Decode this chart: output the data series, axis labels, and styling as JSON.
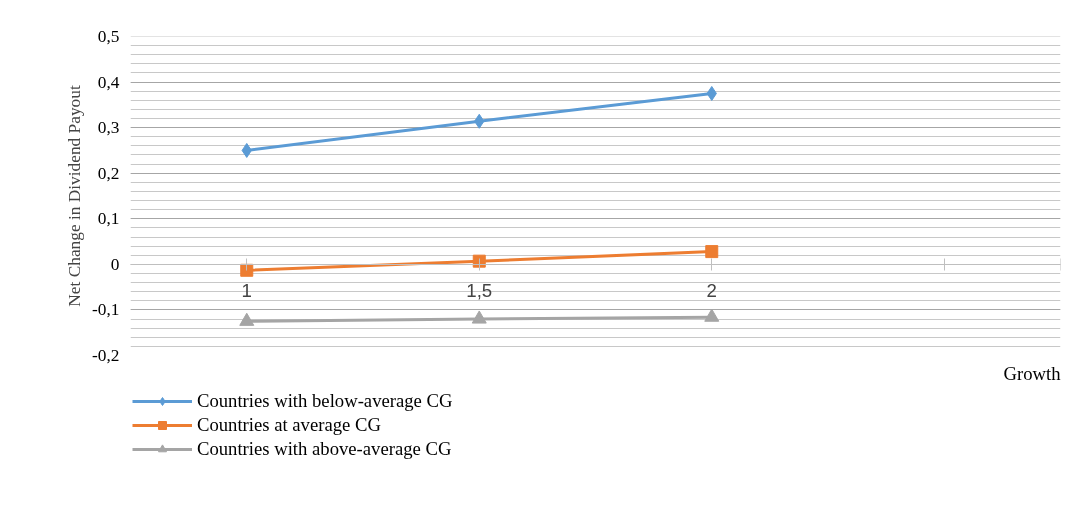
{
  "chart_data": {
    "type": "line",
    "xlabel": "Growth",
    "ylabel": "Net Change in Dividend Payout",
    "categories": [
      "1",
      "1,5",
      "2",
      null
    ],
    "series": [
      {
        "name": "Countries with below-average CG",
        "color": "#5b9bd5",
        "marker": "diamond",
        "values": [
          0.25,
          0.314,
          0.375,
          null
        ]
      },
      {
        "name": "Countries at average CG",
        "color": "#ed7d31",
        "marker": "square",
        "values": [
          -0.013,
          0.007,
          0.028,
          null
        ]
      },
      {
        "name": "Countries with above-average CG",
        "color": "#a5a5a5",
        "marker": "triangle",
        "values": [
          -0.125,
          -0.12,
          -0.116,
          null
        ]
      }
    ],
    "ylim": [
      -0.2,
      0.5
    ],
    "yticks": [
      {
        "value": -0.2,
        "label": "-0,2"
      },
      {
        "value": -0.1,
        "label": "-0,1"
      },
      0,
      {
        "value": 0.1,
        "label": "0,1"
      },
      {
        "value": 0.2,
        "label": "0,2"
      },
      {
        "value": 0.3,
        "label": "0,3"
      },
      {
        "value": 0.4,
        "label": "0,4"
      },
      {
        "value": 0.5,
        "label": "0,5"
      }
    ],
    "grid": "y",
    "legend": "bottom left",
    "line_style": "solid"
  }
}
